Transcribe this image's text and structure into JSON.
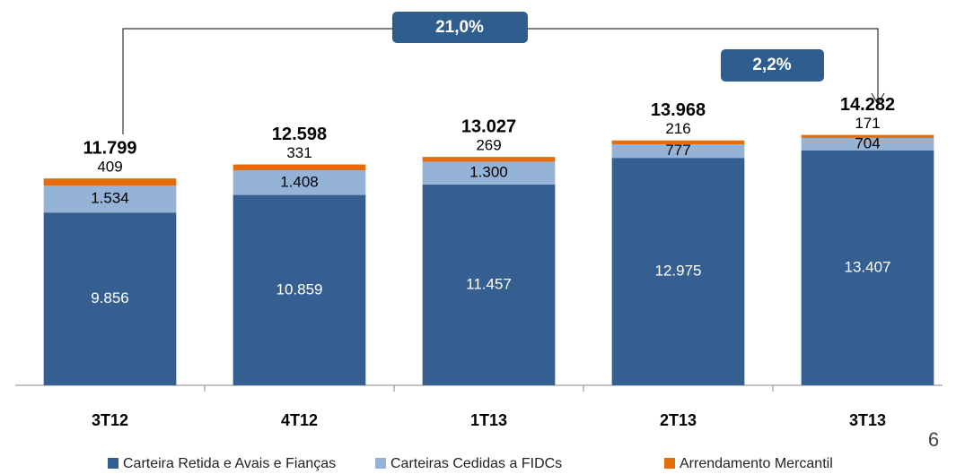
{
  "chart_data": {
    "type": "stacked_bar",
    "categories": [
      "3T12",
      "4T12",
      "1T13",
      "2T13",
      "3T13"
    ],
    "series": [
      {
        "name": "Carteira Retida e Avais e Fianças",
        "color": "#365f91",
        "values": [
          9856,
          10859,
          11457,
          12975,
          13407
        ],
        "value_labels": [
          "9.856",
          "10.859",
          "11.457",
          "12.975",
          "13.407"
        ]
      },
      {
        "name": "Carteiras Cedidas a FIDCs",
        "color": "#95b3d7",
        "values": [
          1534,
          1408,
          1300,
          777,
          704
        ],
        "value_labels": [
          "1.534",
          "1.408",
          "1.300",
          "777",
          "704"
        ]
      },
      {
        "name": "Arrendamento Mercantil",
        "color": "#e46c0a",
        "values": [
          409,
          331,
          269,
          216,
          171
        ],
        "value_labels": [
          "409",
          "331",
          "269",
          "216",
          "171"
        ]
      }
    ],
    "totals": {
      "values": [
        11799,
        12598,
        13027,
        13968,
        14282
      ],
      "value_labels": [
        "11.799",
        "12.598",
        "13.027",
        "13.968",
        "14.282"
      ]
    },
    "annotations": [
      "21,0%",
      "2,2%"
    ],
    "page_number": "6",
    "ylim": [
      0,
      16000
    ],
    "legend": "bottom"
  }
}
